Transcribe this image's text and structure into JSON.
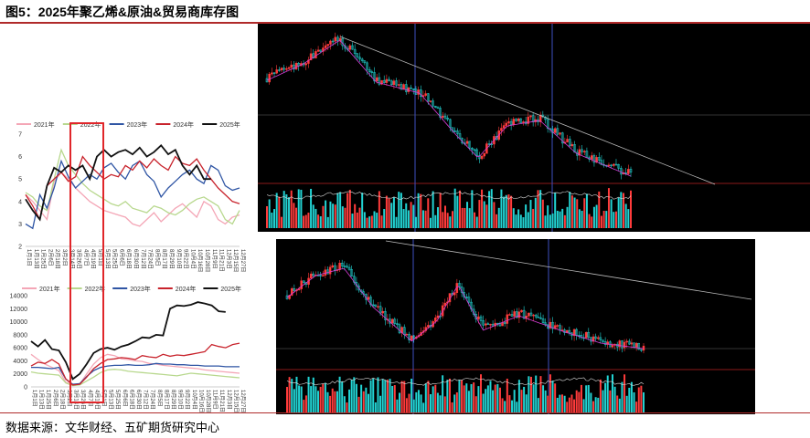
{
  "title": "图5：2025年聚乙烯&原油&贸易商库存图",
  "source": "数据来源：文华财经、五矿期货研究中心",
  "chart_data": [
    {
      "type": "line",
      "series_names": [
        "2021年",
        "2022年",
        "2023年",
        "2024年",
        "2025年"
      ],
      "colors": [
        "#f4a6b6",
        "#b8d88e",
        "#2f55a4",
        "#c8232c",
        "#111111"
      ],
      "ylim": [
        2,
        7
      ],
      "yticks": [
        "2",
        "3",
        "4",
        "5",
        "6",
        "7"
      ],
      "xticks": [
        "1月1日",
        "1月13日",
        "1月25日",
        "2月6日",
        "2月18日",
        "3月2日",
        "3月14日",
        "3月26日",
        "4月7日",
        "4月19日",
        "5月1日",
        "5月13日",
        "5月25日",
        "6月6日",
        "6月18日",
        "6月30日",
        "7月12日",
        "7月24日",
        "8月5日",
        "8月17日",
        "8月29日",
        "9月10日",
        "9月22日",
        "10月4日",
        "10月16日",
        "10月28日",
        "11月9日",
        "11月21日",
        "12月3日",
        "12月15日",
        "12月27日"
      ],
      "series": [
        {
          "name": "2021年",
          "values": [
            4.3,
            4.0,
            3.6,
            3.2,
            4.9,
            5.3,
            5.0,
            4.6,
            4.3,
            4.0,
            3.8,
            3.6,
            3.5,
            3.4,
            3.3,
            3.0,
            2.9,
            3.2,
            3.5,
            3.1,
            3.4,
            3.7,
            3.9,
            3.6,
            3.3,
            4.0,
            3.8,
            3.2,
            3.0,
            3.3,
            3.4
          ]
        },
        {
          "name": "2022年",
          "values": [
            4.4,
            4.2,
            3.8,
            3.6,
            5.0,
            6.3,
            5.6,
            5.2,
            4.8,
            4.5,
            4.3,
            4.1,
            3.9,
            3.8,
            4.0,
            3.7,
            3.6,
            3.5,
            3.8,
            3.7,
            3.5,
            3.4,
            3.6,
            3.9,
            4.1,
            4.2,
            4.0,
            3.8,
            3.2,
            3.0,
            3.6
          ]
        },
        {
          "name": "2023年",
          "values": [
            3.0,
            2.8,
            4.3,
            3.7,
            4.6,
            5.8,
            5.1,
            4.6,
            4.9,
            5.2,
            5.0,
            5.5,
            5.7,
            5.3,
            5.0,
            5.6,
            5.8,
            5.2,
            4.9,
            4.2,
            4.6,
            4.9,
            5.2,
            5.4,
            5.0,
            4.8,
            5.6,
            5.4,
            4.7,
            4.5,
            4.6
          ]
        },
        {
          "name": "2024年",
          "values": [
            4.3,
            3.8,
            3.2,
            4.7,
            5.0,
            5.3,
            4.9,
            5.1,
            6.0,
            5.6,
            5.3,
            5.0,
            5.2,
            5.1,
            5.6,
            5.4,
            5.8,
            5.5,
            5.9,
            5.6,
            5.4,
            6.0,
            5.7,
            5.6,
            5.9,
            5.4,
            5.0,
            4.6,
            4.3,
            4.0,
            3.9
          ]
        },
        {
          "name": "2025年",
          "values": [
            4.1,
            3.6,
            3.2,
            4.7,
            5.5,
            5.3,
            5.6,
            5.4,
            5.6,
            5.0,
            6.0,
            6.3,
            6.0,
            6.2,
            6.3,
            6.1,
            6.4,
            6.0,
            6.2,
            6.5,
            6.1,
            6.3,
            5.6,
            5.2,
            5.6,
            5.0,
            5.0,
            null,
            null,
            null,
            null
          ]
        }
      ],
      "legend": "top",
      "highlight_label": ""
    },
    {
      "type": "line",
      "series_names": [
        "2021年",
        "2022年",
        "2023年",
        "2024年",
        "2025年"
      ],
      "colors": [
        "#f4a6b6",
        "#b8d88e",
        "#2f55a4",
        "#c8232c",
        "#111111"
      ],
      "ylim": [
        0,
        14000
      ],
      "yticks": [
        "0",
        "2000",
        "4000",
        "6000",
        "8000",
        "10000",
        "12000",
        "14000"
      ],
      "xticks": [
        "1月1日",
        "1月13日",
        "1月25日",
        "2月6日",
        "2月18日",
        "3月2日",
        "3月14日",
        "3月26日",
        "4月7日",
        "4月19日",
        "5月1日",
        "5月13日",
        "5月25日",
        "6月6日",
        "6月18日",
        "6月30日",
        "7月12日",
        "7月24日",
        "8月5日",
        "8月17日",
        "8月29日",
        "9月10日",
        "9月22日",
        "10月4日",
        "10月16日",
        "10月28日",
        "11月9日",
        "11月21日",
        "12月3日",
        "12月15日",
        "12月27日"
      ],
      "series": [
        {
          "name": "2021年",
          "values": [
            5000,
            4200,
            3500,
            3000,
            2500,
            700,
            300,
            400,
            2000,
            3500,
            4500,
            5000,
            4800,
            4300,
            4200,
            4000,
            3900,
            3600,
            3500,
            3300,
            3200,
            3100,
            3000,
            2900,
            2800,
            2600,
            2500,
            2400,
            2300,
            2200,
            2100
          ]
        },
        {
          "name": "2022年",
          "values": [
            2300,
            2100,
            2000,
            1900,
            1800,
            600,
            200,
            300,
            900,
            1500,
            2200,
            2600,
            2700,
            2600,
            2400,
            2300,
            2200,
            2100,
            2000,
            1900,
            1800,
            1700,
            1900,
            2100,
            2000,
            1900,
            1800,
            1700,
            1600,
            1500,
            1400
          ]
        },
        {
          "name": "2023年",
          "values": [
            3000,
            3000,
            2900,
            2800,
            3000,
            1200,
            400,
            500,
            1600,
            2500,
            3000,
            3200,
            3300,
            3300,
            3400,
            3300,
            3300,
            3400,
            3600,
            3500,
            3500,
            3400,
            3400,
            3300,
            3300,
            3200,
            3200,
            3200,
            3100,
            3100,
            3100
          ]
        },
        {
          "name": "2024年",
          "values": [
            3200,
            3800,
            3600,
            4200,
            3500,
            1200,
            300,
            400,
            1500,
            2800,
            3600,
            4200,
            4300,
            4500,
            4400,
            4200,
            4800,
            4600,
            4500,
            5000,
            4700,
            4900,
            4800,
            5000,
            5200,
            5400,
            6500,
            6200,
            6000,
            6500,
            6700
          ]
        },
        {
          "name": "2025年",
          "values": [
            7000,
            6200,
            7200,
            5800,
            5600,
            3800,
            1200,
            2000,
            3500,
            5200,
            5800,
            6000,
            5700,
            6200,
            6500,
            7000,
            7600,
            7500,
            8000,
            7900,
            12000,
            12500,
            12400,
            12600,
            13000,
            12800,
            12500,
            11600,
            11500,
            null,
            null
          ]
        }
      ],
      "legend": "top"
    }
  ]
}
